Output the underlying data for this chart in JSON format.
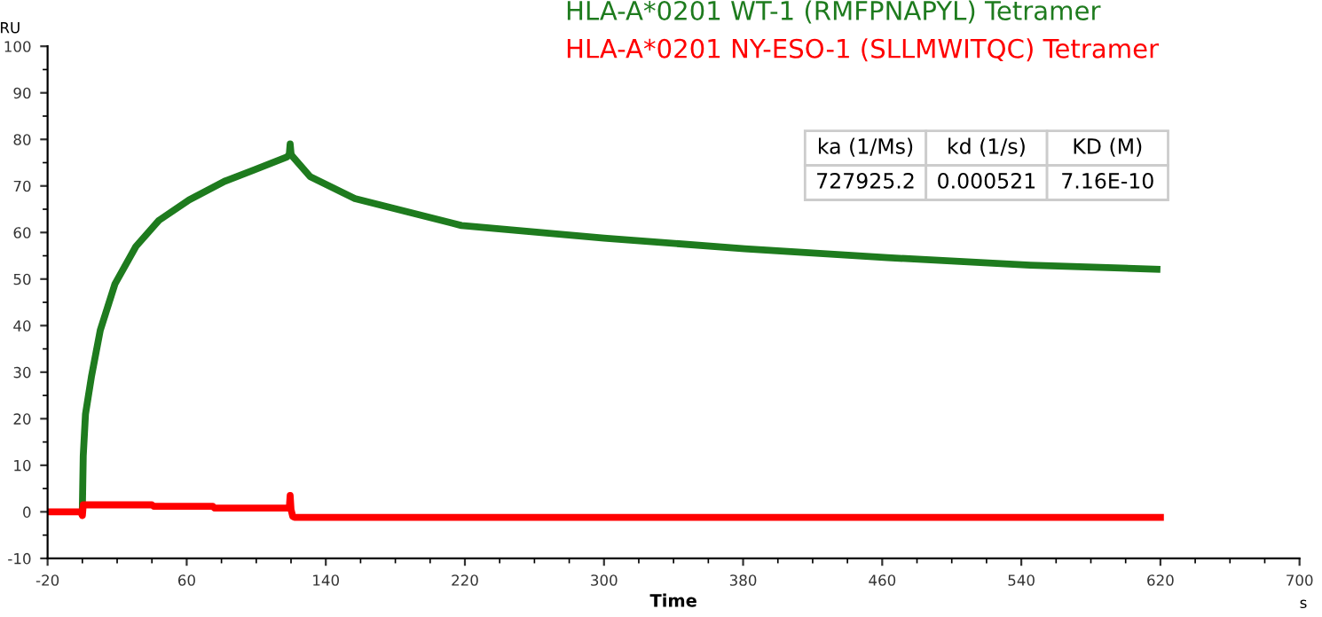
{
  "chart_data": {
    "type": "line",
    "xlabel": "Time",
    "ylabel": "RU",
    "xlim": [
      -20,
      700
    ],
    "xticks": [
      -20,
      60,
      140,
      220,
      300,
      380,
      460,
      540,
      620,
      700
    ],
    "ylim": [
      -10,
      100
    ],
    "yticks": [
      -10,
      0,
      10,
      20,
      30,
      40,
      50,
      60,
      70,
      80,
      90,
      100
    ],
    "grid": false,
    "legend": "top right",
    "marker": "none",
    "line_style": "solid",
    "series": [
      {
        "name": "HLA-A*0201 WT-1 (RMFPNAPYL) Tetramer",
        "color": "#1e7b1e",
        "x": [
          0,
          0.5,
          1.8,
          5.2,
          10.3,
          18.8,
          30.8,
          44,
          61.4,
          81.8,
          98.5,
          117.6,
          119,
          119.5,
          120,
          120.5,
          131,
          156.7,
          218,
          300,
          381,
          463,
          545,
          618
        ],
        "values": [
          0.9,
          12,
          21,
          29,
          39,
          49,
          57,
          62.6,
          67,
          71,
          73.4,
          76.2,
          76.8,
          79,
          77,
          76.5,
          72,
          67.3,
          61.5,
          58.8,
          56.5,
          54.6,
          53,
          52.1
        ]
      },
      {
        "name": "HLA-A*0201 NY-ESO-1 (SLLMWITQC) Tetramer",
        "color": "#ff0000",
        "x": [
          -20,
          -1,
          0,
          0.5,
          40,
          41,
          75,
          76,
          119,
          119.5,
          120,
          121,
          122,
          620
        ],
        "values": [
          0,
          0,
          -0.8,
          1.5,
          1.5,
          1.2,
          1.2,
          0.8,
          0.8,
          3.5,
          0.5,
          -1.0,
          -1.2,
          -1.2
        ]
      }
    ],
    "annotations": [
      "ka (1/Ms)",
      "kd (1/s)",
      "KD (M)",
      "727925.2",
      "0.000521",
      "7.16E-10",
      "s"
    ]
  }
}
